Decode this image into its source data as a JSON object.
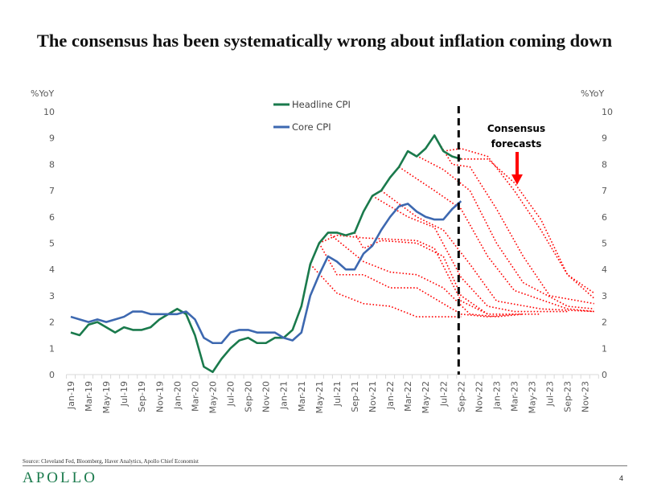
{
  "title": "The consensus has been systematically wrong about inflation coming down",
  "source": "Source: Cleveland Fed, Bloomberg, Haver Analytics, Apollo Chief Economist",
  "logo": "APOLLO",
  "page_number": "4",
  "colors": {
    "headline": "#1a7a4c",
    "core": "#3d68b0",
    "forecast": "#ff0000",
    "divider": "#000000"
  },
  "chart_data": {
    "type": "line",
    "title": "The consensus has been systematically wrong about inflation coming down",
    "ylabel_left": "%YoY",
    "ylabel_right": "%YoY",
    "ylim": [
      0,
      10
    ],
    "yticks": [
      "0",
      "1",
      "2",
      "3",
      "4",
      "5",
      "6",
      "7",
      "8",
      "9",
      "10"
    ],
    "x_start": "Jan-19",
    "x_months_total": 60,
    "xtick_labels": [
      "Jan-19",
      "Mar-19",
      "May-19",
      "Jul-19",
      "Sep-19",
      "Nov-19",
      "Jan-20",
      "Mar-20",
      "May-20",
      "Jul-20",
      "Sep-20",
      "Nov-20",
      "Jan-21",
      "Mar-21",
      "May-21",
      "Jul-21",
      "Sep-21",
      "Nov-21",
      "Jan-22",
      "Mar-22",
      "May-22",
      "Jul-22",
      "Sep-22",
      "Nov-22",
      "Jan-23",
      "Mar-23",
      "May-23",
      "Jul-23",
      "Sep-23",
      "Nov-23"
    ],
    "legend": [
      "Headline CPI",
      "Core CPI"
    ],
    "legend_position": "top-center",
    "series": [
      {
        "name": "Headline CPI",
        "values": [
          1.6,
          1.5,
          1.9,
          2.0,
          1.8,
          1.6,
          1.8,
          1.7,
          1.7,
          1.8,
          2.1,
          2.3,
          2.5,
          2.3,
          1.5,
          0.3,
          0.1,
          0.6,
          1.0,
          1.3,
          1.4,
          1.2,
          1.2,
          1.4,
          1.4,
          1.7,
          2.6,
          4.2,
          5.0,
          5.4,
          5.4,
          5.3,
          5.4,
          6.2,
          6.8,
          7.0,
          7.5,
          7.9,
          8.5,
          8.3,
          8.6,
          9.1,
          8.5,
          8.3,
          8.2
        ]
      },
      {
        "name": "Core CPI",
        "values": [
          2.2,
          2.1,
          2.0,
          2.1,
          2.0,
          2.1,
          2.2,
          2.4,
          2.4,
          2.3,
          2.3,
          2.3,
          2.3,
          2.4,
          2.1,
          1.4,
          1.2,
          1.2,
          1.6,
          1.7,
          1.7,
          1.6,
          1.6,
          1.6,
          1.4,
          1.3,
          1.6,
          3.0,
          3.8,
          4.5,
          4.3,
          4.0,
          4.0,
          4.6,
          4.9,
          5.5,
          6.0,
          6.4,
          6.5,
          6.2,
          6.0,
          5.9,
          5.9,
          6.3,
          6.6
        ]
      }
    ],
    "forecasts_note": "points are [month index from Jan-19, %YoY]",
    "forecasts": [
      [
        [
          27,
          4.2
        ],
        [
          30,
          3.1
        ],
        [
          33,
          2.7
        ],
        [
          36,
          2.6
        ],
        [
          39,
          2.2
        ],
        [
          44,
          2.2
        ]
      ],
      [
        [
          28,
          5.0
        ],
        [
          30,
          3.8
        ],
        [
          33,
          3.8
        ],
        [
          36,
          3.3
        ],
        [
          39,
          3.3
        ],
        [
          42,
          2.7
        ],
        [
          44,
          2.3
        ],
        [
          47,
          2.2
        ],
        [
          50,
          2.3
        ]
      ],
      [
        [
          29,
          5.4
        ],
        [
          33,
          4.3
        ],
        [
          36,
          3.9
        ],
        [
          39,
          3.8
        ],
        [
          42,
          3.3
        ],
        [
          45,
          2.3
        ],
        [
          48,
          2.2
        ],
        [
          51,
          2.3
        ]
      ],
      [
        [
          32,
          5.4
        ],
        [
          33,
          4.8
        ],
        [
          35,
          5.1
        ],
        [
          39,
          5.0
        ],
        [
          42,
          4.5
        ],
        [
          44,
          3.0
        ],
        [
          47,
          2.3
        ],
        [
          53,
          2.3
        ]
      ],
      [
        [
          28,
          5.0
        ],
        [
          30,
          5.3
        ],
        [
          33,
          5.2
        ],
        [
          39,
          5.1
        ],
        [
          41,
          4.8
        ],
        [
          44,
          2.8
        ],
        [
          47,
          2.3
        ]
      ],
      [
        [
          34,
          6.8
        ],
        [
          38,
          6.0
        ],
        [
          41,
          5.6
        ],
        [
          44,
          3.7
        ],
        [
          47,
          2.6
        ],
        [
          50,
          2.4
        ],
        [
          56,
          2.4
        ]
      ],
      [
        [
          35,
          7.0
        ],
        [
          39,
          6.0
        ],
        [
          42,
          5.5
        ],
        [
          45,
          4.2
        ],
        [
          48,
          2.8
        ],
        [
          53,
          2.5
        ],
        [
          59,
          2.4
        ]
      ],
      [
        [
          37,
          7.9
        ],
        [
          41,
          7.0
        ],
        [
          44,
          6.3
        ],
        [
          47,
          4.5
        ],
        [
          50,
          3.2
        ],
        [
          56,
          2.5
        ],
        [
          59,
          2.4
        ]
      ],
      [
        [
          38,
          8.5
        ],
        [
          42,
          7.8
        ],
        [
          45,
          7.0
        ],
        [
          48,
          5.0
        ],
        [
          51,
          3.5
        ],
        [
          56,
          2.6
        ],
        [
          59,
          2.5
        ]
      ],
      [
        [
          41,
          9.1
        ],
        [
          43,
          8.0
        ],
        [
          45,
          7.9
        ],
        [
          48,
          6.3
        ],
        [
          51,
          4.5
        ],
        [
          54,
          3.0
        ],
        [
          59,
          2.7
        ]
      ],
      [
        [
          42,
          8.5
        ],
        [
          44,
          8.6
        ],
        [
          47,
          8.3
        ],
        [
          50,
          7.0
        ],
        [
          53,
          5.5
        ],
        [
          56,
          3.8
        ],
        [
          59,
          3.1
        ]
      ],
      [
        [
          44,
          8.2
        ],
        [
          47,
          8.2
        ],
        [
          50,
          7.3
        ],
        [
          53,
          5.9
        ],
        [
          56,
          3.8
        ],
        [
          59,
          2.9
        ]
      ]
    ],
    "divider_month": "Sep-22",
    "divider_index": 44,
    "annotation": {
      "line1": "Consensus",
      "line2": "forecasts"
    }
  }
}
